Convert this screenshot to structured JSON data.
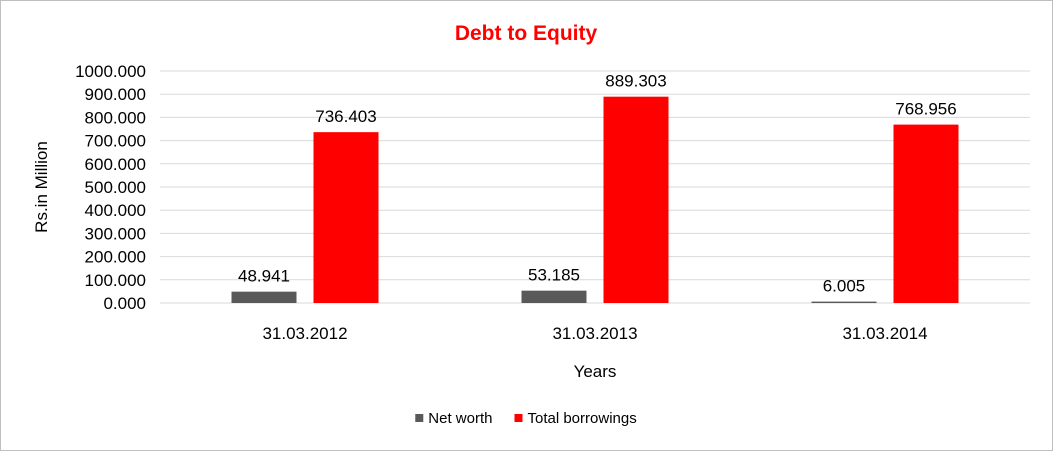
{
  "chart_data": {
    "type": "bar",
    "title": "Debt to Equity",
    "xlabel": "Years",
    "ylabel": "Rs.in Million",
    "categories": [
      "31.03.2012",
      "31.03.2013",
      "31.03.2014"
    ],
    "series": [
      {
        "name": "Net worth",
        "values": [
          48.941,
          53.185,
          6.005
        ],
        "labels": [
          "48.941",
          "53.185",
          "6.005"
        ],
        "color": "#595959"
      },
      {
        "name": "Total borrowings",
        "values": [
          736.403,
          889.303,
          768.956
        ],
        "labels": [
          "736.403",
          "889.303",
          "768.956"
        ],
        "color": "#ff0000"
      }
    ],
    "ylim": [
      0,
      1000
    ],
    "yticks": [
      "0.000",
      "100.000",
      "200.000",
      "300.000",
      "400.000",
      "500.000",
      "600.000",
      "700.000",
      "800.000",
      "900.000",
      "1000.000"
    ],
    "grid": true,
    "legend_position": "bottom",
    "title_color": "#ff0000"
  }
}
